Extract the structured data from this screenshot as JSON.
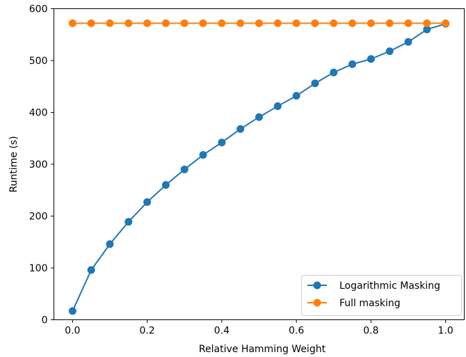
{
  "chart_data": {
    "type": "line",
    "title": "",
    "xlabel": "Relative Hamming Weight",
    "ylabel": "Runtime (s)",
    "xlim": [
      -0.05,
      1.05
    ],
    "ylim": [
      0,
      600
    ],
    "grid": false,
    "legend_position": "bottom-right",
    "x": [
      0.0,
      0.05,
      0.1,
      0.15,
      0.2,
      0.25,
      0.3,
      0.35,
      0.4,
      0.45,
      0.5,
      0.55,
      0.6,
      0.65,
      0.7,
      0.75,
      0.8,
      0.85,
      0.9,
      0.95,
      1.0
    ],
    "xticks": [
      "0.0",
      "0.2",
      "0.4",
      "0.6",
      "0.8",
      "1.0"
    ],
    "xtick_values": [
      0.0,
      0.2,
      0.4,
      0.6,
      0.8,
      1.0
    ],
    "yticks": [
      "0",
      "100",
      "200",
      "300",
      "400",
      "500",
      "600"
    ],
    "ytick_values": [
      0,
      100,
      200,
      300,
      400,
      500,
      600
    ],
    "series": [
      {
        "name": "Logarithmic Masking",
        "color": "#1f77b4",
        "values": [
          17,
          96,
          146,
          189,
          227,
          260,
          290,
          318,
          342,
          368,
          391,
          412,
          432,
          456,
          477,
          493,
          503,
          518,
          536,
          560,
          571
        ]
      },
      {
        "name": "Full masking",
        "color": "#ff7f0e",
        "values": [
          572,
          572,
          572,
          572,
          572,
          572,
          572,
          572,
          572,
          572,
          572,
          572,
          572,
          572,
          572,
          572,
          572,
          572,
          572,
          572,
          572
        ]
      }
    ]
  }
}
